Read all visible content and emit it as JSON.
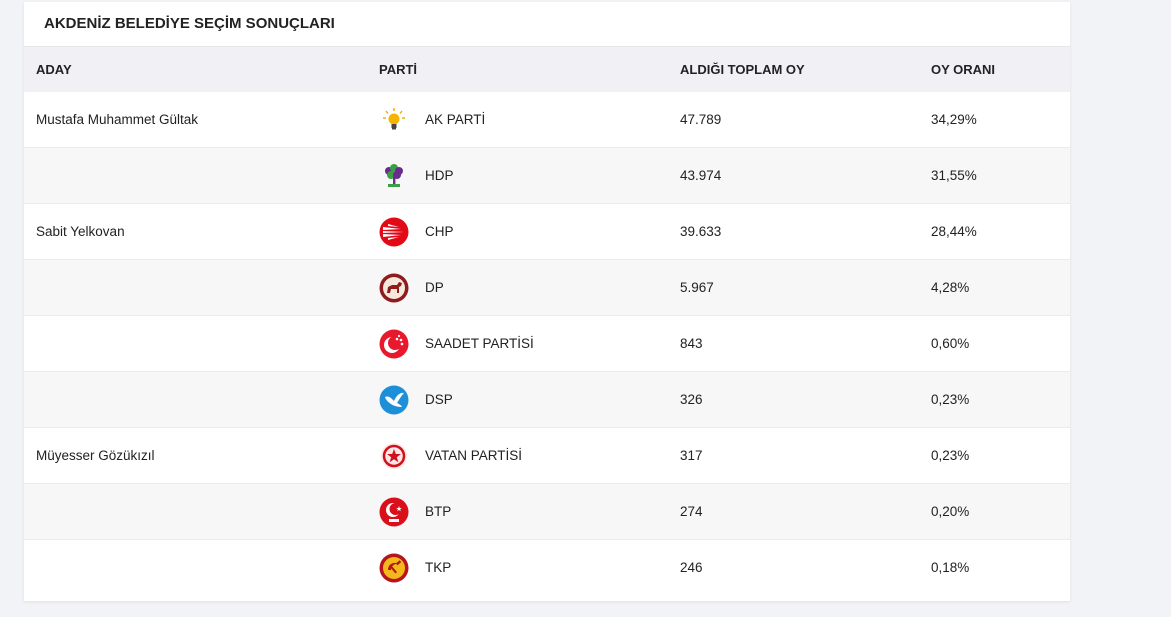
{
  "title": "AKDENİZ BELEDİYE SEÇİM SONUÇLARI",
  "headers": {
    "aday": "ADAY",
    "parti": "PARTİ",
    "toplam": "ALDIĞI TOPLAM OY",
    "oran": "OY ORANI"
  },
  "rows": [
    {
      "aday": "Mustafa Muhammet Gültak",
      "parti": "AK PARTİ",
      "oy": "47.789",
      "oran": "34,29%",
      "icon": "akp-bulb-icon"
    },
    {
      "aday": "",
      "parti": "HDP",
      "oy": "43.974",
      "oran": "31,55%",
      "icon": "hdp-tree-icon"
    },
    {
      "aday": "Sabit Yelkovan",
      "parti": "CHP",
      "oy": "39.633",
      "oran": "28,44%",
      "icon": "chp-arrows-icon"
    },
    {
      "aday": "",
      "parti": "DP",
      "oy": "5.967",
      "oran": "4,28%",
      "icon": "dp-horse-icon"
    },
    {
      "aday": "",
      "parti": "SAADET PARTİSİ",
      "oy": "843",
      "oran": "0,60%",
      "icon": "saadet-crescent-icon"
    },
    {
      "aday": "",
      "parti": "DSP",
      "oy": "326",
      "oran": "0,23%",
      "icon": "dsp-dove-icon"
    },
    {
      "aday": "Müyesser Gözükızıl",
      "parti": "VATAN PARTİSİ",
      "oy": "317",
      "oran": "0,23%",
      "icon": "vatan-star-icon"
    },
    {
      "aday": "",
      "parti": "BTP",
      "oy": "274",
      "oran": "0,20%",
      "icon": "btp-crescent-icon"
    },
    {
      "aday": "",
      "parti": "TKP",
      "oy": "246",
      "oran": "0,18%",
      "icon": "tkp-hammer-sickle-icon"
    }
  ]
}
